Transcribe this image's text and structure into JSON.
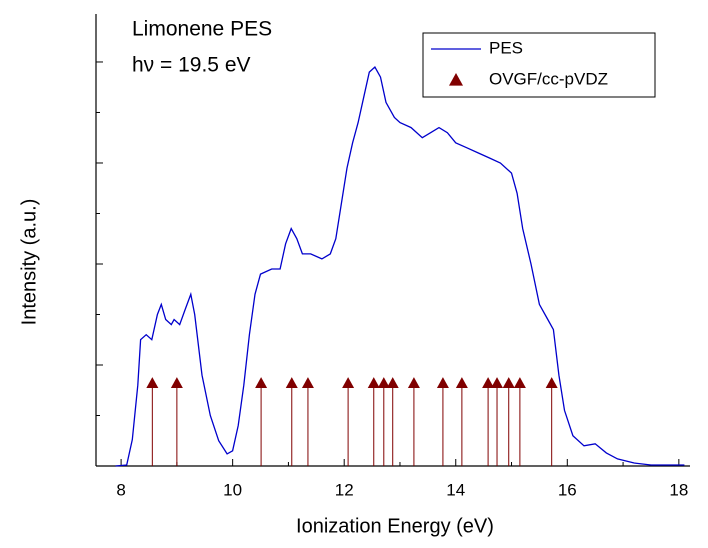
{
  "chart_data": {
    "type": "line",
    "annotations": [
      "Limonene PES",
      "hν = 19.5 eV"
    ],
    "xlabel": "Ionization Energy (eV)",
    "ylabel": "Intensity (a.u.)",
    "xlim": [
      7.55,
      18.2
    ],
    "xticks": [
      8,
      10,
      12,
      14,
      16,
      18
    ],
    "ylim": [
      0,
      4.475
    ],
    "yticks": [
      0,
      1,
      2,
      3,
      4
    ],
    "legend": "upper right",
    "series": [
      {
        "name": "PES",
        "type": "line",
        "color": "#0000cc",
        "x": [
          7.9,
          8.1,
          8.2,
          8.3,
          8.35,
          8.45,
          8.55,
          8.65,
          8.72,
          8.8,
          8.9,
          8.95,
          9.05,
          9.15,
          9.25,
          9.32,
          9.45,
          9.6,
          9.75,
          9.9,
          10.0,
          10.1,
          10.2,
          10.3,
          10.4,
          10.5,
          10.7,
          10.85,
          10.95,
          11.05,
          11.15,
          11.25,
          11.4,
          11.6,
          11.75,
          11.85,
          11.95,
          12.05,
          12.15,
          12.25,
          12.35,
          12.45,
          12.55,
          12.65,
          12.75,
          12.9,
          13.0,
          13.2,
          13.4,
          13.55,
          13.7,
          13.85,
          14.0,
          14.2,
          14.4,
          14.6,
          14.8,
          15.0,
          15.1,
          15.2,
          15.35,
          15.5,
          15.65,
          15.75,
          15.85,
          15.95,
          16.1,
          16.3,
          16.5,
          16.7,
          16.9,
          17.2,
          17.5,
          18.1
        ],
        "values": [
          0,
          0.01,
          0.26,
          0.8,
          1.25,
          1.3,
          1.25,
          1.5,
          1.6,
          1.45,
          1.4,
          1.45,
          1.4,
          1.55,
          1.7,
          1.5,
          0.9,
          0.5,
          0.25,
          0.12,
          0.15,
          0.4,
          0.8,
          1.3,
          1.7,
          1.9,
          1.95,
          1.95,
          2.2,
          2.35,
          2.25,
          2.1,
          2.1,
          2.05,
          2.1,
          2.25,
          2.6,
          2.95,
          3.2,
          3.4,
          3.65,
          3.9,
          3.95,
          3.85,
          3.6,
          3.45,
          3.4,
          3.35,
          3.25,
          3.3,
          3.35,
          3.3,
          3.2,
          3.15,
          3.1,
          3.05,
          3.0,
          2.9,
          2.7,
          2.35,
          2.0,
          1.6,
          1.45,
          1.35,
          0.9,
          0.55,
          0.3,
          0.2,
          0.22,
          0.13,
          0.07,
          0.03,
          0.01,
          0.01
        ]
      },
      {
        "name": "OVGF/cc-pVDZ",
        "type": "stem",
        "marker": "triangle",
        "color": "#800000",
        "x": [
          8.56,
          9.0,
          10.51,
          11.06,
          11.35,
          12.07,
          12.53,
          12.71,
          12.87,
          13.25,
          13.77,
          14.11,
          14.58,
          14.74,
          14.95,
          15.15,
          15.72
        ],
        "values": [
          0.82,
          0.82,
          0.82,
          0.82,
          0.82,
          0.82,
          0.82,
          0.82,
          0.82,
          0.82,
          0.82,
          0.82,
          0.82,
          0.82,
          0.82,
          0.82,
          0.82
        ]
      }
    ]
  }
}
